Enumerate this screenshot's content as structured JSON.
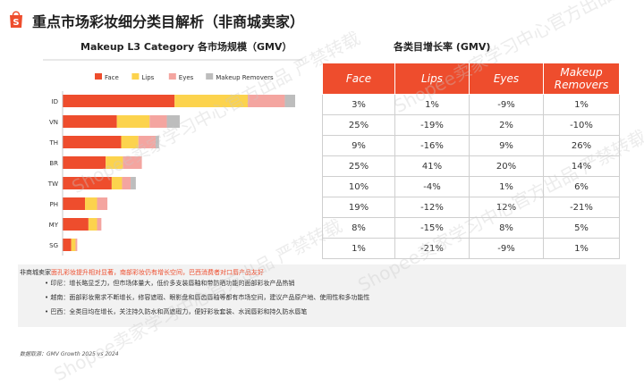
{
  "page": {
    "title": "重点市场彩妆细分类目解析（非商城卖家）",
    "watermark": "Shopee卖家学习中心官方出品 严禁转载"
  },
  "left_chart": {
    "title": "Makeup L3 Category 各市场规模（GMV）"
  },
  "right_table": {
    "title": "各类目增长率 (GMV)",
    "headers": [
      "Face",
      "Lips",
      "Eyes",
      "Makeup Removers"
    ],
    "rows": [
      [
        "3%",
        "1%",
        "-9%",
        "1%"
      ],
      [
        "25%",
        "-19%",
        "2%",
        "-10%"
      ],
      [
        "9%",
        "-16%",
        "9%",
        "26%"
      ],
      [
        "25%",
        "41%",
        "20%",
        "14%"
      ],
      [
        "10%",
        "-4%",
        "1%",
        "6%"
      ],
      [
        "19%",
        "-12%",
        "12%",
        "-21%"
      ],
      [
        "8%",
        "-15%",
        "8%",
        "5%"
      ],
      [
        "1%",
        "-21%",
        "-9%",
        "1%"
      ]
    ]
  },
  "notes": {
    "intro": "非商城卖家",
    "intro_highlight": "面孔彩妆提升相对显著，南部彩妆仍有增长空间，巴西消费者对口唇产品友好",
    "bullets": [
      "印尼：增长略显乏力，但市场体量大，低价多支装唇釉和带防晒功能的面部彩妆产品热销",
      "越南：面部彩妆需求不断增长，修容遮瑕、眼影盘和唇齿唇釉等都有市场空间，建议产品原产地、使用性和多功能性",
      "巴西：全类目均在增长，关注持久防水和高遮瑕力，便好彩妆套装、水润唇彩和持久防水唇笔"
    ]
  },
  "footer": "数据取源：GMV Growth 2025 vs 2024",
  "colors": {
    "face": "#ee4d2d",
    "lips": "#fcd34d",
    "eyes": "#f4a5a0",
    "removers": "#bdbdbd",
    "accent": "#ee4d2d"
  },
  "chart_data": {
    "type": "bar",
    "orientation": "horizontal",
    "stacked": true,
    "categories": [
      "ID",
      "VN",
      "TH",
      "BR",
      "TW",
      "PH",
      "MY",
      "SG"
    ],
    "series": [
      {
        "name": "Face",
        "values": [
          130,
          63,
          68,
          50,
          57,
          26,
          30,
          10
        ]
      },
      {
        "name": "Lips",
        "values": [
          85,
          38,
          20,
          20,
          12,
          14,
          10,
          5
        ]
      },
      {
        "name": "Eyes",
        "values": [
          43,
          20,
          20,
          22,
          10,
          12,
          5,
          2
        ]
      },
      {
        "name": "Makeup Removers",
        "values": [
          12,
          15,
          4,
          0,
          6,
          0,
          0,
          0
        ]
      }
    ],
    "legend": "top",
    "title": "Makeup L3 Category 各市场规模（GMV）",
    "xlabel": "",
    "ylabel": "",
    "xlim": [
      0,
      270
    ],
    "grid": false
  }
}
